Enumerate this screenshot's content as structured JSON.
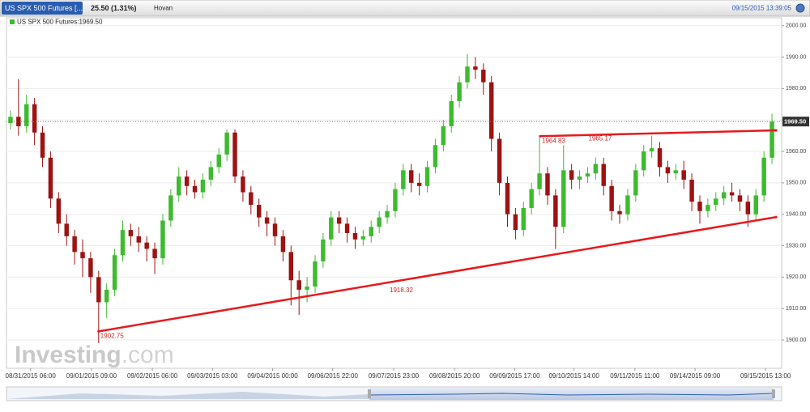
{
  "header": {
    "instrument": "US SPX 500 Futures [...",
    "change": "25.50 (1.31%)",
    "user": "Hovan",
    "timestamp": "09/15/2015 13:39:05"
  },
  "watermark": [
    "Investing",
    ".com"
  ],
  "chart_data": {
    "type": "candlestick",
    "legend_label": "US SPX 500 Futures:1969.50",
    "up_color": "#3dbb2e",
    "down_color": "#9e1212",
    "grid": true,
    "ylim": [
      1891,
      2002.5
    ],
    "yticks": [
      {
        "value": 1900,
        "label": "1900.00"
      },
      {
        "value": 1910,
        "label": "1910.00"
      },
      {
        "value": 1920,
        "label": "1920.00"
      },
      {
        "value": 1930,
        "label": "1930.00"
      },
      {
        "value": 1940,
        "label": "1940.00"
      },
      {
        "value": 1950,
        "label": "1950.00"
      },
      {
        "value": 1960,
        "label": "1960.00"
      },
      {
        "value": 1970,
        "label": "1970.00"
      },
      {
        "value": 1980,
        "label": "1980.00"
      },
      {
        "value": 1990,
        "label": "1990.00"
      },
      {
        "value": 2000,
        "label": "2000.00"
      }
    ],
    "xlim": [
      0,
      96
    ],
    "xticks": [
      {
        "value": 3,
        "label": "08/31/2015 06:00"
      },
      {
        "value": 10.6,
        "label": "09/01/2015 09:00"
      },
      {
        "value": 18.2,
        "label": "09/02/2015 06:00"
      },
      {
        "value": 25.7,
        "label": "09/03/2015 03:00"
      },
      {
        "value": 33.2,
        "label": "09/04/2015 00:00"
      },
      {
        "value": 40.7,
        "label": "09/06/2015 22:00"
      },
      {
        "value": 48.3,
        "label": "09/07/2015 23:00"
      },
      {
        "value": 55.9,
        "label": "09/08/2015 20:00"
      },
      {
        "value": 63.4,
        "label": "09/09/2015 17:00"
      },
      {
        "value": 70.8,
        "label": "09/10/2015 14:00"
      },
      {
        "value": 78.4,
        "label": "09/11/2015 11:00"
      },
      {
        "value": 85.9,
        "label": "09/14/2015 09:00"
      },
      {
        "value": 94.7,
        "label": "09/15/2015 13:00"
      }
    ],
    "open": [
      1969,
      1971,
      1968,
      1975,
      1966,
      1958,
      1945,
      1937,
      1933,
      1928,
      1926,
      1920,
      1912,
      1916,
      1927,
      1935,
      1933,
      1931,
      1929,
      1926,
      1938,
      1946,
      1952,
      1949,
      1947,
      1951,
      1955,
      1959,
      1966,
      1952,
      1947,
      1943,
      1939,
      1937,
      1933,
      1928,
      1919,
      1916,
      1917,
      1925,
      1932,
      1939,
      1937,
      1934,
      1932,
      1933,
      1936,
      1939,
      1941,
      1948,
      1954,
      1950,
      1949,
      1955,
      1962,
      1968,
      1976,
      1982,
      1987,
      1986,
      1982,
      1964,
      1950,
      1940,
      1935,
      1942,
      1948,
      1953,
      1946,
      1936,
      1954,
      1951,
      1952,
      1953,
      1956,
      1949,
      1941,
      1940,
      1946,
      1954,
      1960,
      1961,
      1955,
      1953,
      1954,
      1951,
      1944,
      1941,
      1943,
      1945,
      1947,
      1946,
      1944,
      1940,
      1946,
      1958
    ],
    "high": [
      1973,
      1983,
      1978,
      1977,
      1968,
      1960,
      1947,
      1940,
      1935,
      1932,
      1928,
      1922,
      1918,
      1929,
      1938,
      1937,
      1936,
      1933,
      1931,
      1940,
      1948,
      1955,
      1954,
      1951,
      1953,
      1957,
      1961,
      1967,
      1967,
      1954,
      1949,
      1945,
      1941,
      1939,
      1935,
      1930,
      1922,
      1920,
      1927,
      1934,
      1941,
      1941,
      1939,
      1936,
      1935,
      1938,
      1941,
      1943,
      1950,
      1956,
      1956,
      1953,
      1957,
      1964,
      1970,
      1978,
      1984,
      1991,
      1990,
      1988,
      1984,
      1966,
      1952,
      1942,
      1944,
      1950,
      1965,
      1955,
      1948,
      1962,
      1956,
      1954,
      1955,
      1958,
      1958,
      1951,
      1943,
      1948,
      1956,
      1962,
      1965,
      1963,
      1957,
      1956,
      1957,
      1953,
      1946,
      1945,
      1947,
      1949,
      1950,
      1948,
      1946,
      1948,
      1960,
      1972
    ],
    "low": [
      1967,
      1965,
      1966,
      1962,
      1955,
      1942,
      1934,
      1930,
      1924,
      1920,
      1915,
      1899,
      1907,
      1914,
      1925,
      1930,
      1928,
      1925,
      1921,
      1924,
      1936,
      1944,
      1946,
      1945,
      1945,
      1949,
      1953,
      1957,
      1950,
      1944,
      1940,
      1936,
      1933,
      1930,
      1925,
      1911,
      1908,
      1912,
      1915,
      1923,
      1930,
      1934,
      1931,
      1929,
      1930,
      1931,
      1934,
      1937,
      1939,
      1946,
      1947,
      1946,
      1947,
      1953,
      1960,
      1966,
      1974,
      1980,
      1983,
      1978,
      1960,
      1946,
      1936,
      1932,
      1933,
      1940,
      1946,
      1943,
      1929,
      1934,
      1948,
      1948,
      1950,
      1951,
      1946,
      1938,
      1937,
      1938,
      1944,
      1952,
      1958,
      1952,
      1950,
      1951,
      1948,
      1941,
      1937,
      1939,
      1941,
      1943,
      1944,
      1941,
      1936,
      1938,
      1944,
      1956
    ],
    "close": [
      1971,
      1968,
      1975,
      1966,
      1958,
      1945,
      1937,
      1933,
      1928,
      1926,
      1920,
      1912,
      1916,
      1927,
      1935,
      1933,
      1931,
      1929,
      1926,
      1938,
      1946,
      1952,
      1949,
      1947,
      1951,
      1955,
      1959,
      1966,
      1952,
      1947,
      1943,
      1939,
      1937,
      1933,
      1928,
      1919,
      1916,
      1917,
      1925,
      1932,
      1939,
      1937,
      1934,
      1932,
      1933,
      1936,
      1939,
      1941,
      1948,
      1954,
      1950,
      1949,
      1955,
      1962,
      1968,
      1976,
      1982,
      1987,
      1986,
      1982,
      1964,
      1950,
      1940,
      1935,
      1942,
      1948,
      1953,
      1946,
      1936,
      1954,
      1951,
      1952,
      1953,
      1956,
      1949,
      1941,
      1940,
      1946,
      1954,
      1960,
      1961,
      1955,
      1953,
      1954,
      1951,
      1944,
      1941,
      1943,
      1945,
      1947,
      1946,
      1944,
      1940,
      1946,
      1958,
      1969.5
    ],
    "last_price": {
      "value": 1969.5,
      "label": "1969.50"
    },
    "trendlines": [
      {
        "color": "#e8191d",
        "x": [
          11.5,
          96
        ],
        "y": [
          1902.75,
          1939.1
        ]
      },
      {
        "color": "#e8191d",
        "x": [
          66.6,
          96
        ],
        "y": [
          1964.83,
          1966.7
        ]
      }
    ],
    "annotations": [
      {
        "text": "1902.75",
        "x": 11.7,
        "y": 1901.2
      },
      {
        "text": "1918.32",
        "x": 47.8,
        "y": 1915.8
      },
      {
        "text": "1964.83",
        "x": 66.8,
        "y": 1963.2
      },
      {
        "text": "1965.17",
        "x": 72.6,
        "y": 1964
      }
    ]
  }
}
